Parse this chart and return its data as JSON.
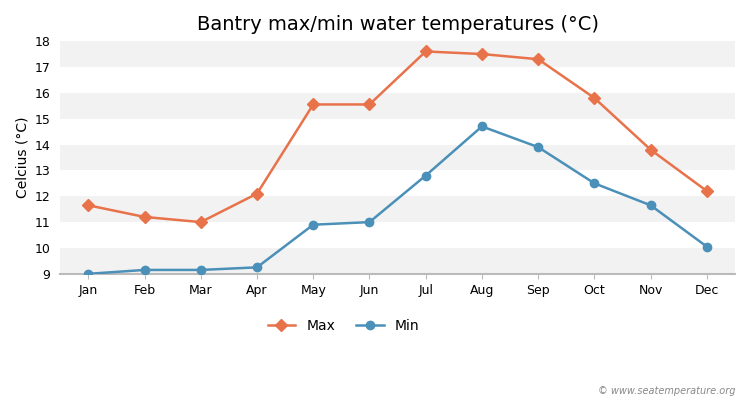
{
  "title": "Bantry max/min water temperatures (°C)",
  "ylabel": "Celcius (°C)",
  "months": [
    "Jan",
    "Feb",
    "Mar",
    "Apr",
    "May",
    "Jun",
    "Jul",
    "Aug",
    "Sep",
    "Oct",
    "Nov",
    "Dec"
  ],
  "max_temps": [
    11.65,
    11.2,
    11.0,
    12.1,
    15.55,
    15.55,
    17.6,
    17.5,
    17.3,
    15.8,
    13.8,
    12.2
  ],
  "min_temps": [
    9.0,
    9.15,
    9.15,
    9.25,
    10.9,
    11.0,
    12.8,
    14.7,
    13.9,
    12.5,
    11.65,
    10.05
  ],
  "max_color": "#e8724a",
  "min_color": "#4a90b8",
  "bg_color": "#ffffff",
  "band_color_light": "#f2f2f2",
  "band_color_white": "#ffffff",
  "ylim": [
    9,
    18
  ],
  "yticks": [
    9,
    10,
    11,
    12,
    13,
    14,
    15,
    16,
    17,
    18
  ],
  "title_fontsize": 14,
  "axis_label_fontsize": 10,
  "tick_fontsize": 9,
  "legend_fontsize": 10,
  "watermark": "© www.seatemperature.org",
  "marker_max": "D",
  "marker_min": "o",
  "line_width": 1.8,
  "marker_size": 6
}
